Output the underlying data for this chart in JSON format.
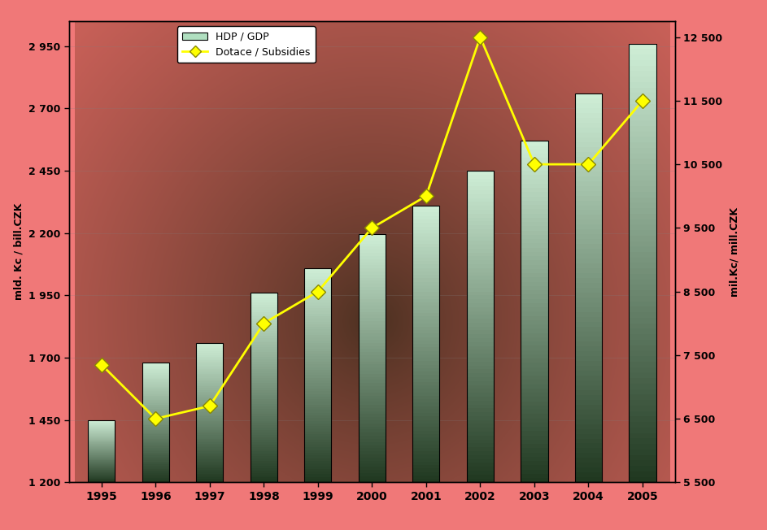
{
  "years": [
    1995,
    1996,
    1997,
    1998,
    1999,
    2000,
    2001,
    2002,
    2003,
    2004,
    2005
  ],
  "gdp_values": [
    1450,
    1680,
    1760,
    1960,
    2060,
    2195,
    2310,
    2450,
    2570,
    2760,
    2960
  ],
  "subsidies_values": [
    7350,
    6500,
    6700,
    8000,
    8500,
    9500,
    10000,
    12500,
    10500,
    10500,
    11500
  ],
  "left_ylabel": "mld. Kc / bill.CZK",
  "right_ylabel": "mil.Kc/ mill.CZK",
  "left_ylim": [
    1200,
    3050
  ],
  "right_ylim": [
    5500,
    12750
  ],
  "left_yticks": [
    1200,
    1450,
    1700,
    1950,
    2200,
    2450,
    2700,
    2950
  ],
  "left_yticklabels": [
    "1 200",
    "1 450",
    "1 700",
    "1 950",
    "2 200",
    "2 450",
    "2 700",
    "2 950"
  ],
  "right_yticks": [
    5500,
    6500,
    7500,
    8500,
    9500,
    10500,
    11500,
    12500
  ],
  "right_yticklabels": [
    "5 500",
    "6 500",
    "7 500",
    "8 500",
    "9 500",
    "10 500",
    "11 500",
    "12 500"
  ],
  "legend_gdp": "HDP / GDP",
  "legend_subsidies": "Dotace / Subsidies",
  "bar_color_top": "#d0f0d8",
  "bar_color_bottom": "#203820",
  "line_color": "#ffff00",
  "marker_color": "#ffff00",
  "marker_style": "D",
  "bg_outer_color": "#f07878",
  "bg_plot_center": "#4a3020",
  "bg_plot_edge": "#c06060"
}
